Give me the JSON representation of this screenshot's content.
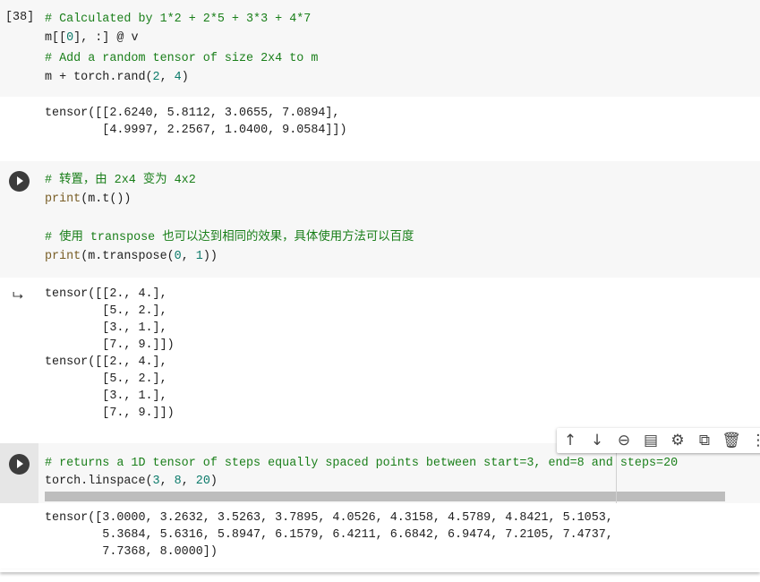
{
  "cells": [
    {
      "execution_count": "[38]",
      "code": [
        [
          {
            "t": "# Calculated by 1*2 + 2*5 + 3*3 + 4*7",
            "c": "comment"
          }
        ],
        [
          {
            "t": "m[[",
            "c": "plain"
          },
          {
            "t": "0",
            "c": "num"
          },
          {
            "t": "], :] @ v",
            "c": "plain"
          }
        ],
        [
          {
            "t": "# Add a random tensor of size 2x4 to m",
            "c": "comment"
          }
        ],
        [
          {
            "t": "m + torch.rand(",
            "c": "plain"
          },
          {
            "t": "2",
            "c": "num"
          },
          {
            "t": ", ",
            "c": "plain"
          },
          {
            "t": "4",
            "c": "num"
          },
          {
            "t": ")",
            "c": "plain"
          }
        ]
      ],
      "output": [
        "tensor([[2.6240, 5.8112, 3.0655, 7.0894],",
        "        [4.9997, 2.2567, 1.0400, 9.0584]])"
      ]
    },
    {
      "code": [
        [
          {
            "t": "# 转置，由 2x4 变为 4x2",
            "c": "comment"
          }
        ],
        [
          {
            "t": "print",
            "c": "fn"
          },
          {
            "t": "(m.t())",
            "c": "plain"
          }
        ],
        [],
        [
          {
            "t": "# 使用 transpose 也可以达到相同的效果，具体使用方法可以百度",
            "c": "comment"
          }
        ],
        [
          {
            "t": "print",
            "c": "fn"
          },
          {
            "t": "(m.transpose(",
            "c": "plain"
          },
          {
            "t": "0",
            "c": "num"
          },
          {
            "t": ", ",
            "c": "plain"
          },
          {
            "t": "1",
            "c": "num"
          },
          {
            "t": "))",
            "c": "plain"
          }
        ]
      ],
      "output": [
        "tensor([[2., 4.],",
        "        [5., 2.],",
        "        [3., 1.],",
        "        [7., 9.]])",
        "tensor([[2., 4.],",
        "        [5., 2.],",
        "        [3., 1.],",
        "        [7., 9.]])"
      ]
    },
    {
      "code": [
        [
          {
            "t": "# returns a 1D tensor of steps equally spaced points between start=3, end=8 and steps=20",
            "c": "comment"
          }
        ],
        [
          {
            "t": "torch.linspace(",
            "c": "plain"
          },
          {
            "t": "3",
            "c": "num"
          },
          {
            "t": ", ",
            "c": "plain"
          },
          {
            "t": "8",
            "c": "num"
          },
          {
            "t": ", ",
            "c": "plain"
          },
          {
            "t": "20",
            "c": "num"
          },
          {
            "t": ")",
            "c": "plain"
          }
        ]
      ],
      "output": [
        "tensor([3.0000, 3.2632, 3.5263, 3.7895, 4.0526, 4.3158, 4.5789, 4.8421, 5.1053,",
        "        5.3684, 5.6316, 5.8947, 6.1579, 6.4211, 6.6842, 6.9474, 7.2105, 7.4737,",
        "        7.7368, 8.0000])"
      ]
    }
  ],
  "toolbar": [
    {
      "icon": "arrow-up-icon",
      "glyph": "↑"
    },
    {
      "icon": "arrow-down-icon",
      "glyph": "↓"
    },
    {
      "icon": "link-icon",
      "glyph": "⊖"
    },
    {
      "icon": "comment-icon",
      "glyph": "▤"
    },
    {
      "icon": "gear-icon",
      "glyph": "⚙"
    },
    {
      "icon": "mirror-cell-icon",
      "glyph": "⧉"
    },
    {
      "icon": "trash-icon",
      "glyph": "🗑"
    },
    {
      "icon": "more-icon",
      "glyph": "⋮"
    }
  ]
}
